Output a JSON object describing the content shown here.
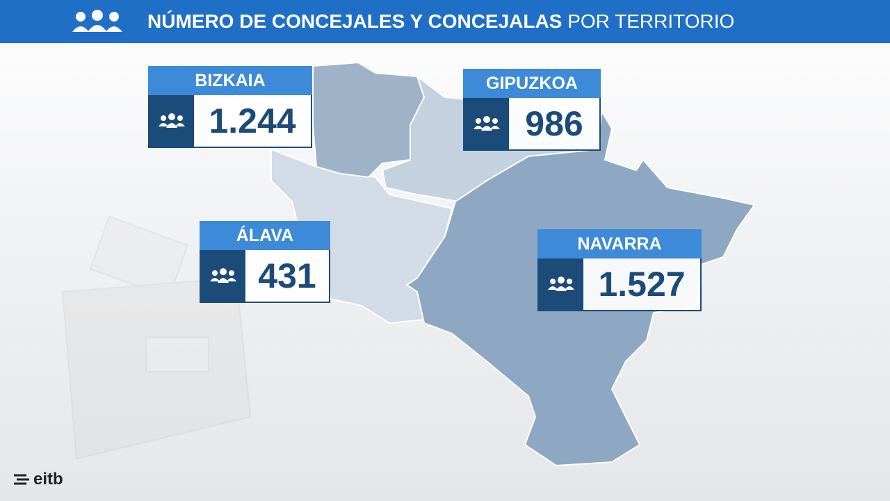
{
  "header": {
    "title_bold": "NÚMERO DE CONCEJALES Y CONCEJALAS",
    "title_regular": "POR TERRITORIO"
  },
  "regions": [
    {
      "name": "BIZKAIA",
      "value": "1.244"
    },
    {
      "name": "GIPUZKOA",
      "value": "986"
    },
    {
      "name": "ÁLAVA",
      "value": "431"
    },
    {
      "name": "NAVARRA",
      "value": "1.527"
    }
  ],
  "logo": "eitb"
}
